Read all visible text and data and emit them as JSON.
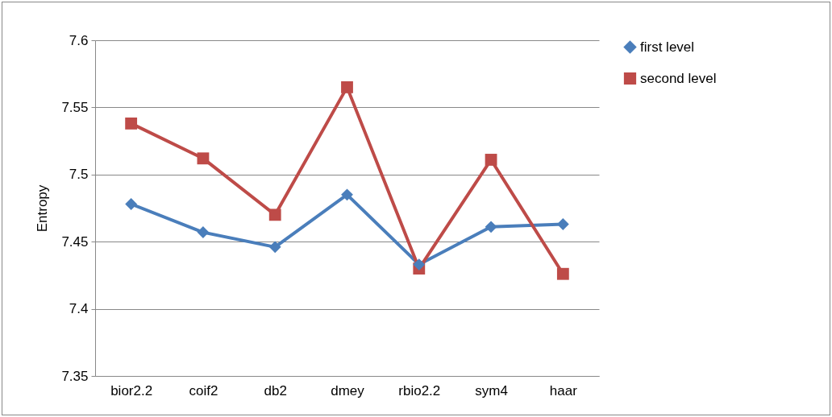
{
  "chart_data": {
    "type": "line",
    "ylabel": "Entropy",
    "categories": [
      "bior2.2",
      "coif2",
      "db2",
      "dmey",
      "rbio2.2",
      "sym4",
      "haar"
    ],
    "series": [
      {
        "name": "first level",
        "color": "#4a7ebb",
        "marker": "diamond",
        "values": [
          7.478,
          7.457,
          7.446,
          7.485,
          7.433,
          7.461,
          7.463
        ]
      },
      {
        "name": "second level",
        "color": "#be4b48",
        "marker": "square",
        "values": [
          7.538,
          7.512,
          7.47,
          7.565,
          7.43,
          7.511,
          7.426
        ]
      }
    ],
    "ylim": [
      7.35,
      7.6
    ],
    "yticks": [
      7.35,
      7.4,
      7.45,
      7.5,
      7.55,
      7.6
    ],
    "grid": "y",
    "legend": "right"
  }
}
